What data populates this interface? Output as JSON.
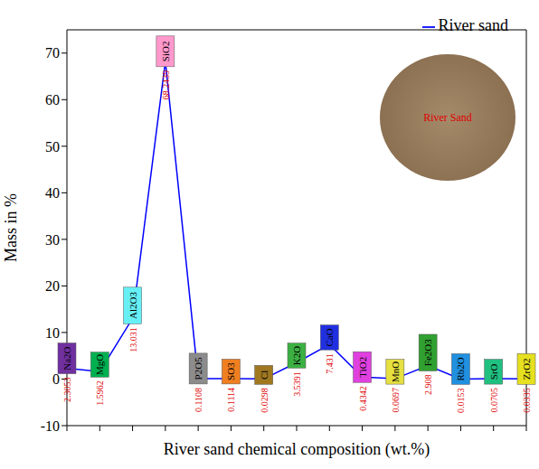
{
  "chart_data": {
    "type": "line",
    "x_label": "River sand chemical composition (wt.%)",
    "y_label": "Mass in %",
    "categories": [
      "Na2O",
      "MgO",
      "Al2O3",
      "SiO2",
      "P2O5",
      "SO3",
      "Cl",
      "K2O",
      "CaO",
      "TiO2",
      "MnO",
      "Fe2O3",
      "Rb2O",
      "SrO",
      "ZrO2"
    ],
    "series": [
      {
        "name": "River sand",
        "color": "#0000ff",
        "values": [
          2.3053,
          1.5962,
          13.031,
          68.2439,
          0.1108,
          0.1114,
          0.0298,
          3.5391,
          7.431,
          0.4342,
          0.0697,
          2.908,
          0.0153,
          0.0705,
          0.0335
        ],
        "colors": [
          "#7030a0",
          "#00b050",
          "#66f0f5",
          "#ff99cc",
          "#8c8c8c",
          "#f07f20",
          "#a07820",
          "#3cb043",
          "#2030e0",
          "#e040e0",
          "#e6e040",
          "#30a030",
          "#2090e0",
          "#20c080",
          "#e6e020"
        ]
      }
    ],
    "ylim": [
      -10,
      75
    ],
    "yticks": [
      -10,
      0,
      10,
      20,
      30,
      40,
      50,
      60,
      70
    ],
    "data_labels": true,
    "tick_labels": "y",
    "legend": "upper right",
    "grid": false,
    "annotations": [
      "River Sand"
    ]
  }
}
